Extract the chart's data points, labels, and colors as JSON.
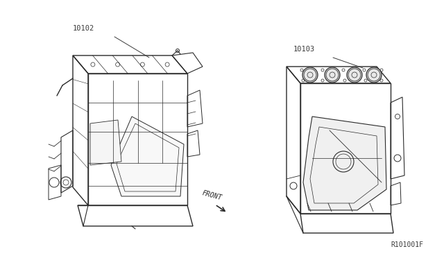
{
  "bg_color": "#ffffff",
  "line_color": "#2a2a2a",
  "text_color": "#3a3a3a",
  "label_10102": "10102",
  "label_10103": "10103",
  "label_front": "FRONT",
  "diagram_ref": "R101001F",
  "fig_width": 6.4,
  "fig_height": 3.72,
  "dpi": 100
}
